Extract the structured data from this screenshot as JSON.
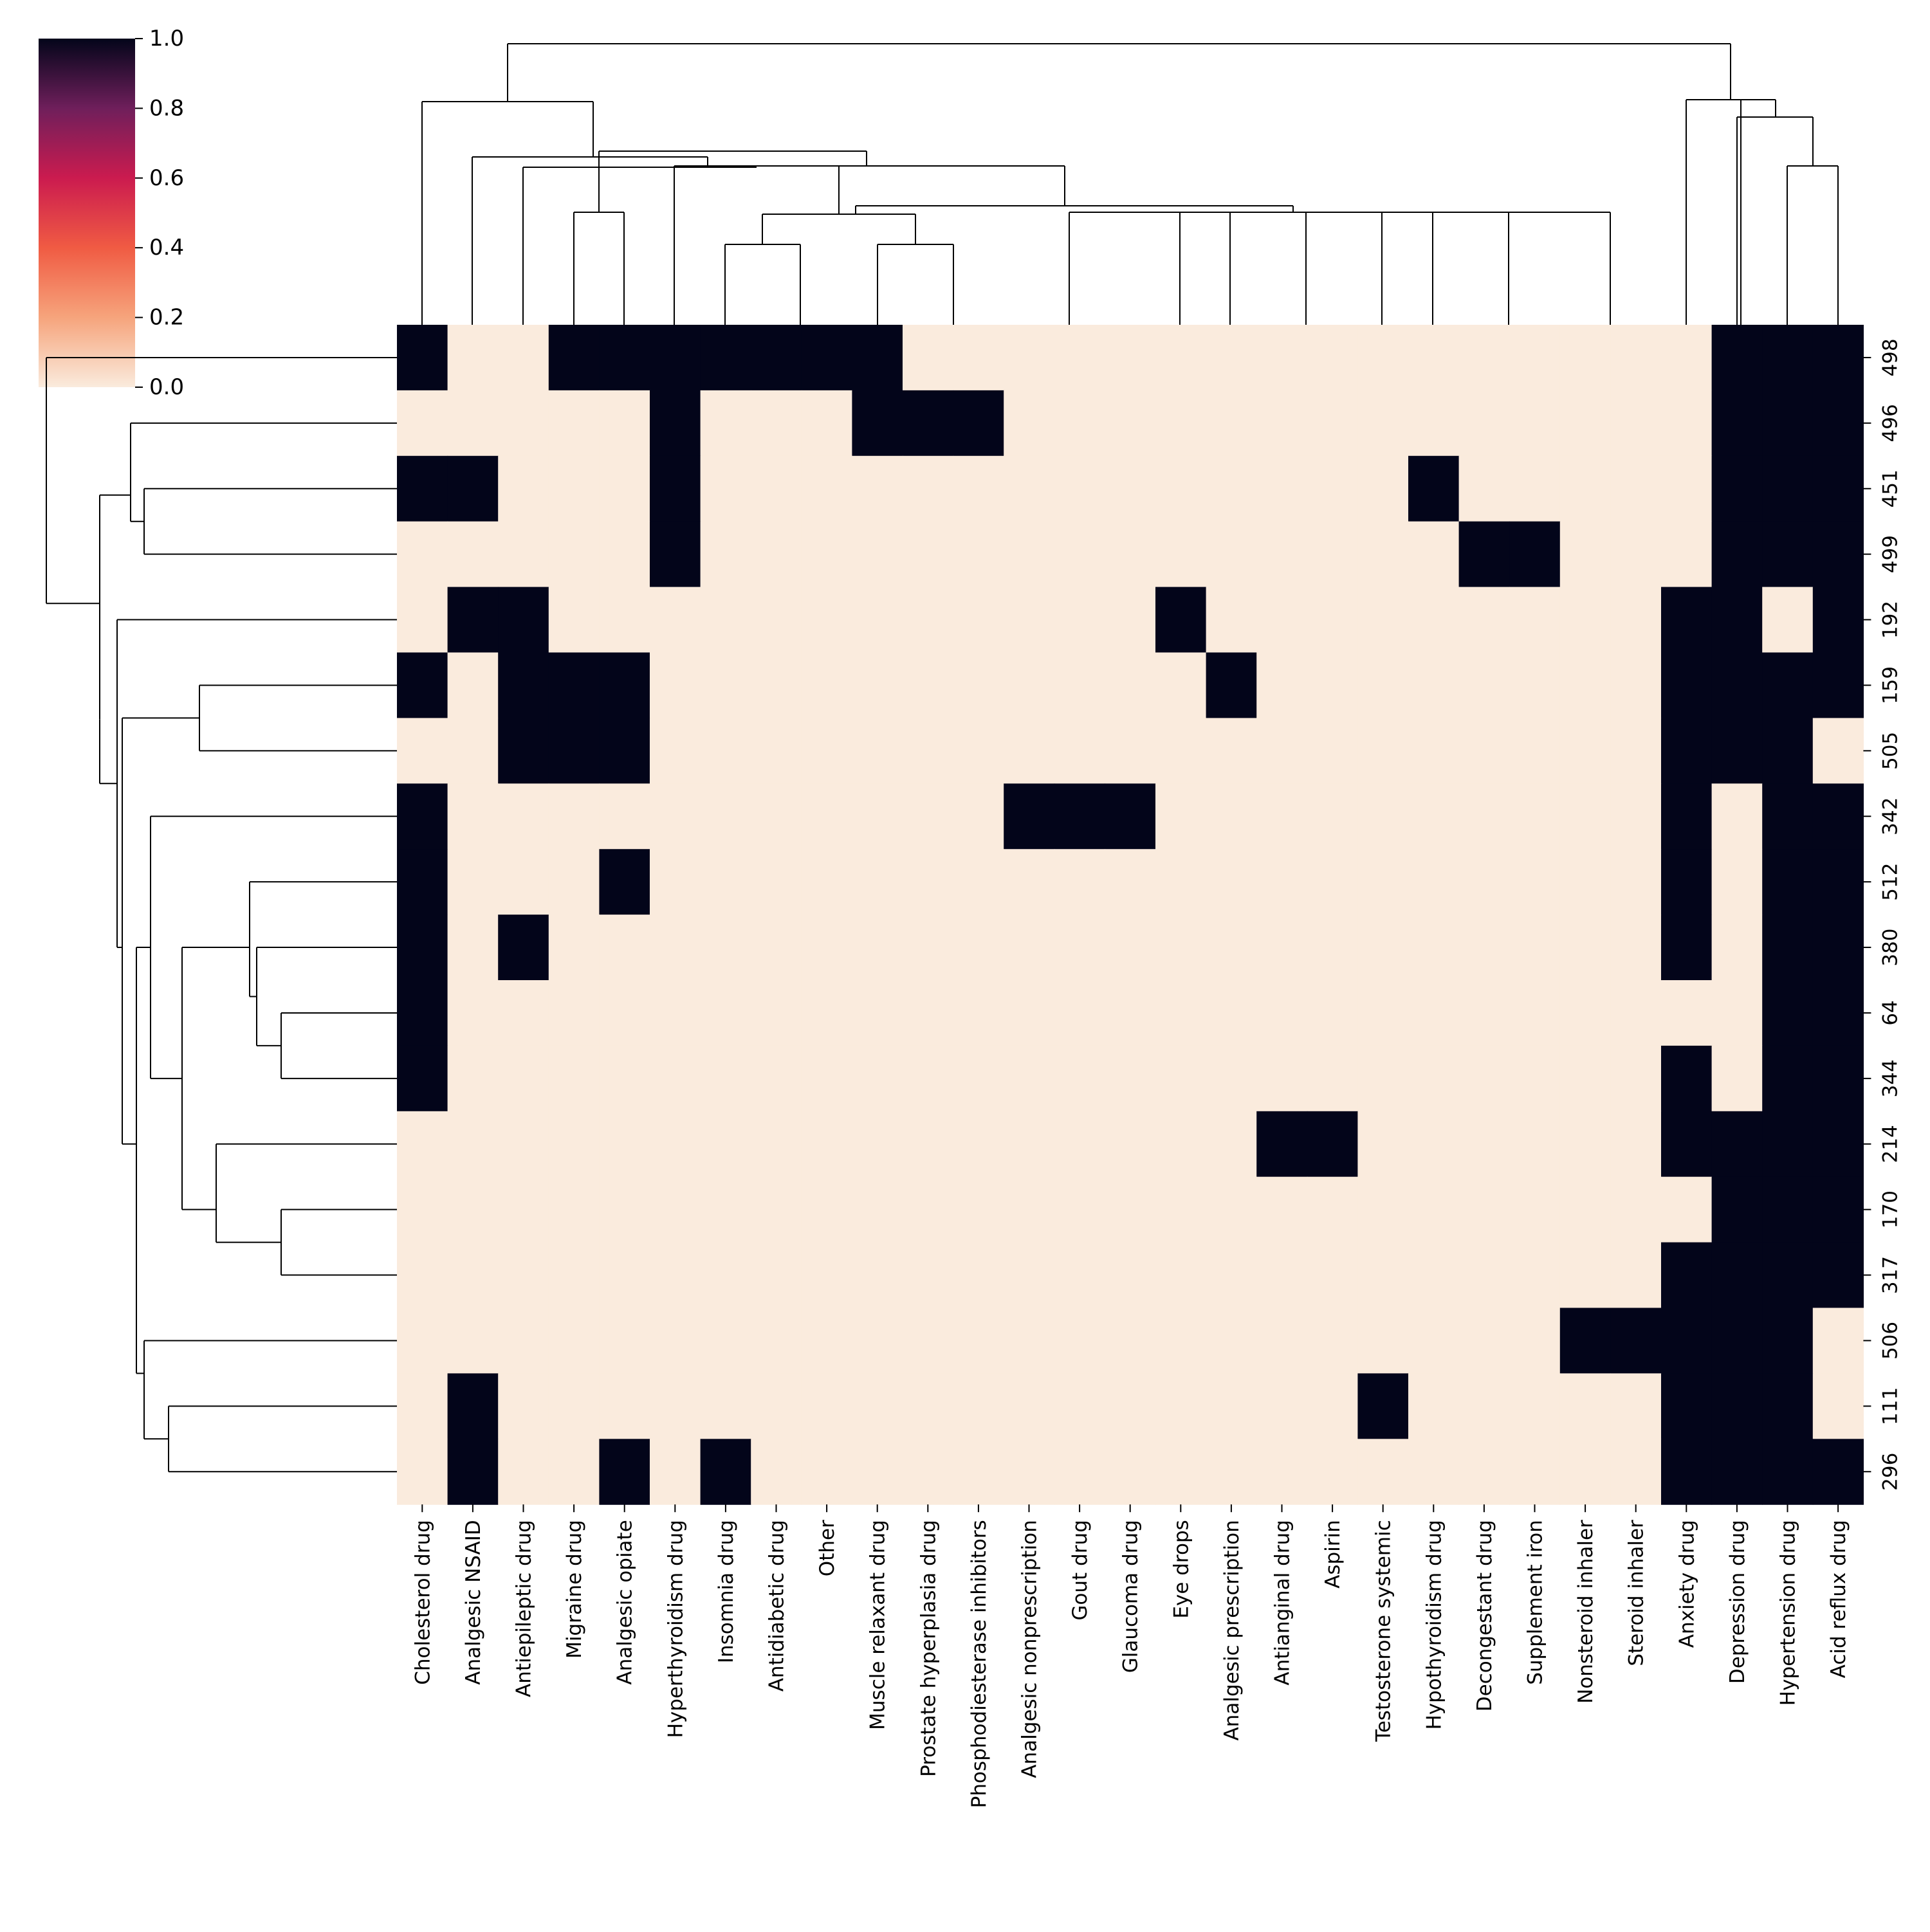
{
  "chart_data": {
    "type": "heatmap",
    "title": "",
    "columns": [
      "Cholesterol drug",
      "Analgesic NSAID",
      "Antiepileptic drug",
      "Migraine drug",
      "Analgesic opiate",
      "Hyperthyroidism drug",
      "Insomnia drug",
      "Antidiabetic drug",
      "Other",
      "Muscle relaxant drug",
      "Prostate hyperplasia drug",
      "Phosphodiesterase inhibitors",
      "Analgesic nonprescription",
      "Gout drug",
      "Glaucoma drug",
      "Eye drops",
      "Analgesic prescription",
      "Antianginal drug",
      "Aspirin",
      "Testosterone systemic",
      "Hypothyroidism drug",
      "Decongestant drug",
      "Supplement iron",
      "Nonsteroid inhaler",
      "Steroid inhaler",
      "Anxiety drug",
      "Depression drug",
      "Hypertension drug",
      "Acid reflux drug"
    ],
    "rows": [
      "498",
      "496",
      "451",
      "499",
      "192",
      "159",
      "505",
      "342",
      "512",
      "380",
      "64",
      "344",
      "214",
      "170",
      "317",
      "506",
      "111",
      "296"
    ],
    "cells": [
      [
        1,
        0,
        0,
        1,
        1,
        1,
        1,
        1,
        1,
        1,
        0,
        0,
        0,
        0,
        0,
        0,
        0,
        0,
        0,
        0,
        0,
        0,
        0,
        0,
        0,
        0,
        1,
        1,
        1
      ],
      [
        0,
        0,
        0,
        0,
        0,
        1,
        0,
        0,
        0,
        1,
        1,
        1,
        0,
        0,
        0,
        0,
        0,
        0,
        0,
        0,
        0,
        0,
        0,
        0,
        0,
        0,
        1,
        1,
        1
      ],
      [
        1,
        1,
        0,
        0,
        0,
        1,
        0,
        0,
        0,
        0,
        0,
        0,
        0,
        0,
        0,
        0,
        0,
        0,
        0,
        0,
        1,
        0,
        0,
        0,
        0,
        0,
        1,
        1,
        1
      ],
      [
        0,
        0,
        0,
        0,
        0,
        1,
        0,
        0,
        0,
        0,
        0,
        0,
        0,
        0,
        0,
        0,
        0,
        0,
        0,
        0,
        0,
        1,
        1,
        0,
        0,
        0,
        1,
        1,
        1
      ],
      [
        0,
        1,
        1,
        0,
        0,
        0,
        0,
        0,
        0,
        0,
        0,
        0,
        0,
        0,
        0,
        1,
        0,
        0,
        0,
        0,
        0,
        0,
        0,
        0,
        0,
        1,
        1,
        0,
        1
      ],
      [
        1,
        0,
        1,
        1,
        1,
        0,
        0,
        0,
        0,
        0,
        0,
        0,
        0,
        0,
        0,
        0,
        1,
        0,
        0,
        0,
        0,
        0,
        0,
        0,
        0,
        1,
        1,
        1,
        1
      ],
      [
        0,
        0,
        1,
        1,
        1,
        0,
        0,
        0,
        0,
        0,
        0,
        0,
        0,
        0,
        0,
        0,
        0,
        0,
        0,
        0,
        0,
        0,
        0,
        0,
        0,
        1,
        1,
        1,
        0
      ],
      [
        1,
        0,
        0,
        0,
        0,
        0,
        0,
        0,
        0,
        0,
        0,
        0,
        1,
        1,
        1,
        0,
        0,
        0,
        0,
        0,
        0,
        0,
        0,
        0,
        0,
        1,
        0,
        1,
        1
      ],
      [
        1,
        0,
        0,
        0,
        1,
        0,
        0,
        0,
        0,
        0,
        0,
        0,
        0,
        0,
        0,
        0,
        0,
        0,
        0,
        0,
        0,
        0,
        0,
        0,
        0,
        1,
        0,
        1,
        1
      ],
      [
        1,
        0,
        1,
        0,
        0,
        0,
        0,
        0,
        0,
        0,
        0,
        0,
        0,
        0,
        0,
        0,
        0,
        0,
        0,
        0,
        0,
        0,
        0,
        0,
        0,
        1,
        0,
        1,
        1
      ],
      [
        1,
        0,
        0,
        0,
        0,
        0,
        0,
        0,
        0,
        0,
        0,
        0,
        0,
        0,
        0,
        0,
        0,
        0,
        0,
        0,
        0,
        0,
        0,
        0,
        0,
        0,
        0,
        1,
        1
      ],
      [
        1,
        0,
        0,
        0,
        0,
        0,
        0,
        0,
        0,
        0,
        0,
        0,
        0,
        0,
        0,
        0,
        0,
        0,
        0,
        0,
        0,
        0,
        0,
        0,
        0,
        1,
        0,
        1,
        1
      ],
      [
        0,
        0,
        0,
        0,
        0,
        0,
        0,
        0,
        0,
        0,
        0,
        0,
        0,
        0,
        0,
        0,
        0,
        1,
        1,
        0,
        0,
        0,
        0,
        0,
        0,
        1,
        1,
        1,
        1
      ],
      [
        0,
        0,
        0,
        0,
        0,
        0,
        0,
        0,
        0,
        0,
        0,
        0,
        0,
        0,
        0,
        0,
        0,
        0,
        0,
        0,
        0,
        0,
        0,
        0,
        0,
        0,
        1,
        1,
        1
      ],
      [
        0,
        0,
        0,
        0,
        0,
        0,
        0,
        0,
        0,
        0,
        0,
        0,
        0,
        0,
        0,
        0,
        0,
        0,
        0,
        0,
        0,
        0,
        0,
        0,
        0,
        1,
        1,
        1,
        1
      ],
      [
        0,
        0,
        0,
        0,
        0,
        0,
        0,
        0,
        0,
        0,
        0,
        0,
        0,
        0,
        0,
        0,
        0,
        0,
        0,
        0,
        0,
        0,
        0,
        1,
        1,
        1,
        1,
        1,
        0
      ],
      [
        0,
        1,
        0,
        0,
        0,
        0,
        0,
        0,
        0,
        0,
        0,
        0,
        0,
        0,
        0,
        0,
        0,
        0,
        0,
        1,
        0,
        0,
        0,
        0,
        0,
        1,
        1,
        1,
        0
      ],
      [
        0,
        1,
        0,
        0,
        1,
        0,
        1,
        0,
        0,
        0,
        0,
        0,
        0,
        0,
        0,
        0,
        0,
        0,
        0,
        0,
        0,
        0,
        0,
        0,
        0,
        1,
        1,
        1,
        1
      ]
    ],
    "colorbar": {
      "min": 0.0,
      "max": 1.0,
      "ticks": [
        "0.0",
        "0.2",
        "0.4",
        "0.6",
        "0.8",
        "1.0"
      ],
      "low_color": "#faebdd",
      "high_color": "#03051a"
    },
    "dendrograms": {
      "rows": true,
      "columns": true
    }
  }
}
